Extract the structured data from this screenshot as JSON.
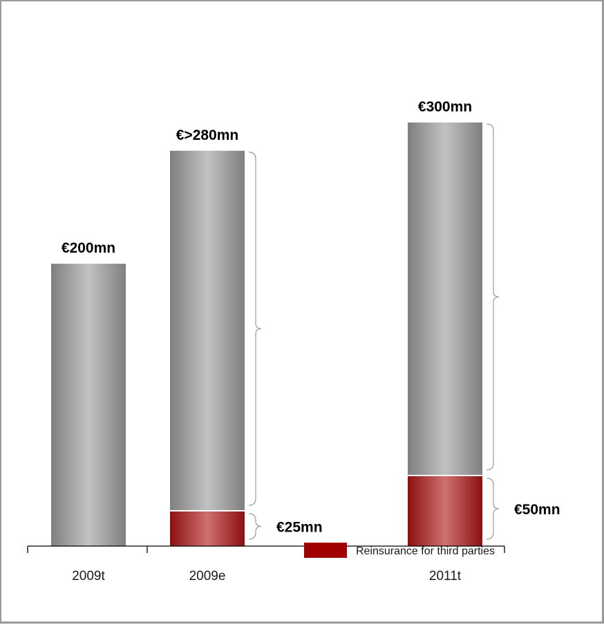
{
  "chart_data": {
    "type": "bar",
    "categories": [
      "2009t",
      "2009e",
      "2011t"
    ],
    "series": [
      {
        "name": "",
        "values": [
          200,
          255,
          250
        ]
      },
      {
        "name": "Reinsurance for third parties",
        "values": [
          0,
          25,
          50
        ]
      }
    ],
    "totals": [
      200,
      280,
      300
    ],
    "total_labels": [
      "€200mn",
      "€>280mn",
      "€300mn"
    ],
    "segment_labels": [
      "",
      "€25mn",
      "€50mn"
    ],
    "ylim": [
      0,
      320
    ],
    "grid": false,
    "legend_position": "bottom-right",
    "colors": {
      "base_dark": "#7f7f7f",
      "base_light": "#c2c2c2",
      "reinsurance_dark": "#8b1010",
      "reinsurance_light": "#cf7070",
      "legend_swatch": "#a00000"
    }
  }
}
